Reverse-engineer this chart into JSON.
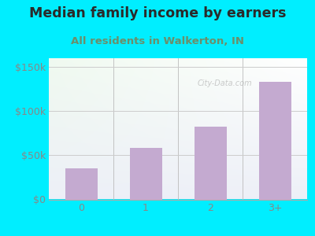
{
  "title": "Median family income by earners",
  "subtitle": "All residents in Walkerton, IN",
  "categories": [
    "0",
    "1",
    "2",
    "3+"
  ],
  "values": [
    35000,
    58000,
    82000,
    133000
  ],
  "ylim": [
    0,
    160000
  ],
  "yticks": [
    0,
    50000,
    100000,
    150000
  ],
  "ytick_labels": [
    "$0",
    "$50k",
    "$100k",
    "$150k"
  ],
  "bar_color": "#c4aad0",
  "title_color": "#2a2a2a",
  "subtitle_color": "#6b8f6b",
  "outer_bg_color": "#00eeff",
  "plot_bg_color_topleft": "#e8f5e8",
  "plot_bg_color_topright": "#ffffff",
  "plot_bg_color_bottom": "#e8f0f8",
  "title_fontsize": 12.5,
  "subtitle_fontsize": 9.5,
  "tick_color": "#777777",
  "tick_label_color": "#888888",
  "watermark": "City-Data.com",
  "grid_color": "#cccccc"
}
